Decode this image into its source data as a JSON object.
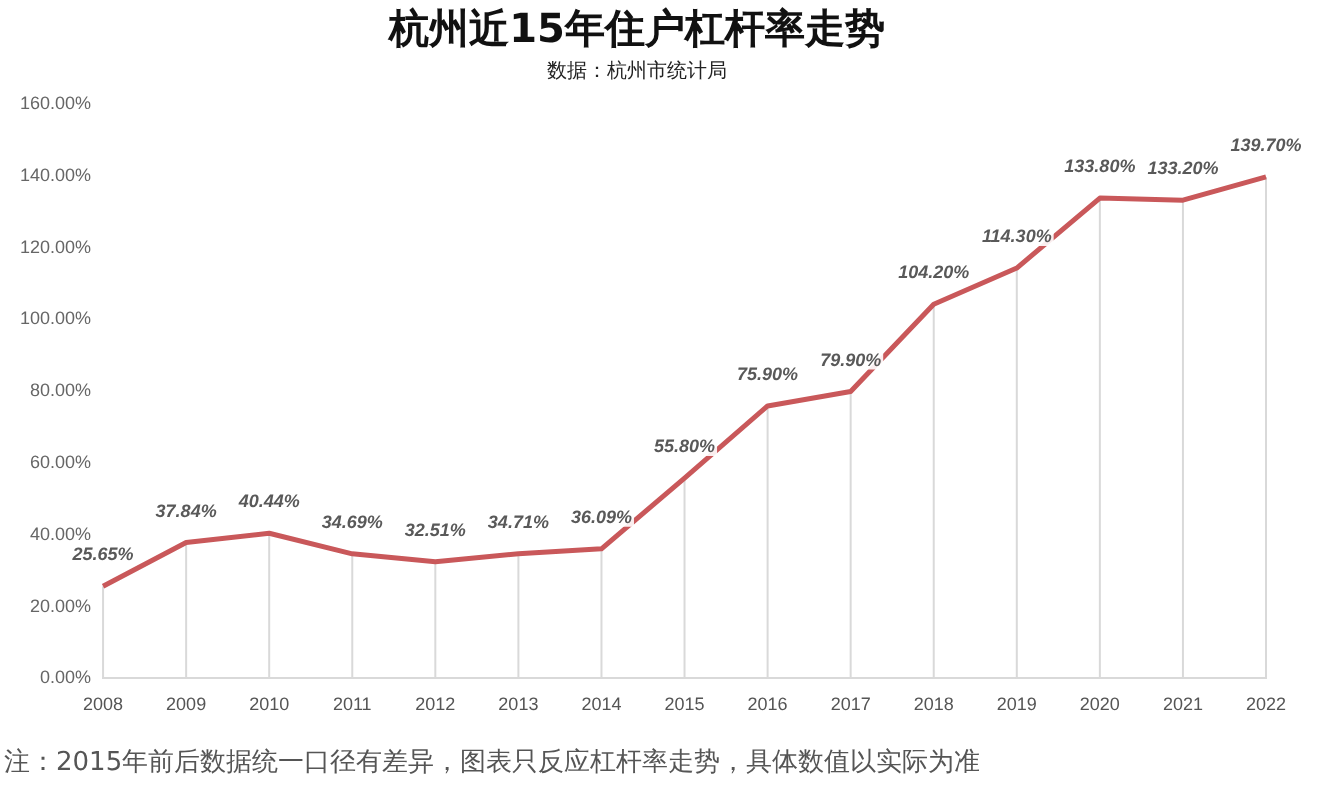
{
  "chart_data": {
    "type": "line",
    "title": "杭州近15年住户杠杆率走势",
    "subtitle": "数据：杭州市统计局",
    "annotations": [
      "注：2015年前后数据统一口径有差异，图表只反应杠杆率走势，具体数值以实际为准"
    ],
    "categories": [
      "2008",
      "2009",
      "2010",
      "2011",
      "2012",
      "2013",
      "2014",
      "2015",
      "2016",
      "2017",
      "2018",
      "2019",
      "2020",
      "2021",
      "2022"
    ],
    "values": [
      25.65,
      37.84,
      40.44,
      34.69,
      32.51,
      34.71,
      36.09,
      55.8,
      75.9,
      79.9,
      104.2,
      114.3,
      133.8,
      133.2,
      139.7
    ],
    "value_labels": [
      "25.65%",
      "37.84%",
      "40.44%",
      "34.69%",
      "32.51%",
      "34.71%",
      "36.09%",
      "55.80%",
      "75.90%",
      "79.90%",
      "104.20%",
      "114.30%",
      "133.80%",
      "133.20%",
      "139.70%"
    ],
    "color": "#c9585a",
    "ylim": [
      0,
      160
    ],
    "yticks": [
      {
        "value": 0,
        "label": "0.00%"
      },
      {
        "value": 20,
        "label": "20.00%"
      },
      {
        "value": 40,
        "label": "40.00%"
      },
      {
        "value": 60,
        "label": "60.00%"
      },
      {
        "value": 80,
        "label": "80.00%"
      },
      {
        "value": 100,
        "label": "100.00%"
      },
      {
        "value": 120,
        "label": "120.00%"
      },
      {
        "value": 140,
        "label": "140.00%"
      },
      {
        "value": 160,
        "label": "160.00%"
      }
    ],
    "grid": "x",
    "legend": false,
    "marker": "none",
    "line_style": "solid"
  }
}
